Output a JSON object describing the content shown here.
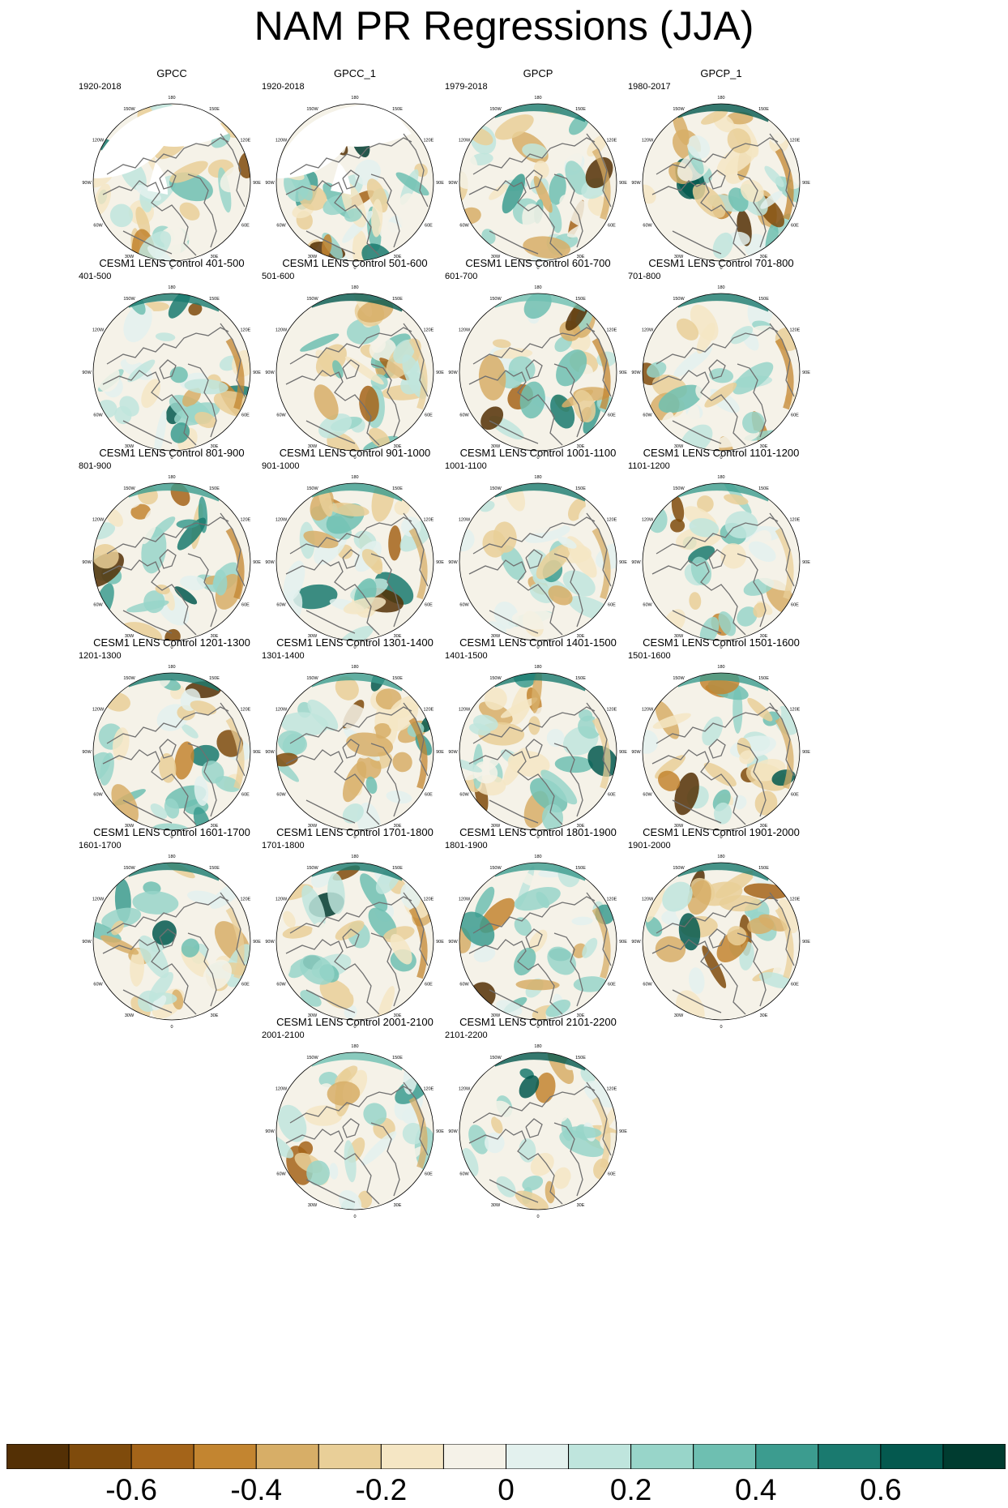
{
  "title": "NAM PR Regressions (JJA)",
  "longitude_labels": [
    "180",
    "150E",
    "120E",
    "90E",
    "60E",
    "30E",
    "0",
    "30W",
    "60W",
    "90W",
    "120W",
    "150W"
  ],
  "panels": [
    {
      "title": "GPCC",
      "period": "1920-2018",
      "kind": "obs_gpcc",
      "seed": 3
    },
    {
      "title": "GPCC_1",
      "period": "1920-2018",
      "kind": "obs_gpcc",
      "seed": 5
    },
    {
      "title": "GPCP",
      "period": "1979-2018",
      "kind": "obs_gpcp",
      "seed": 7
    },
    {
      "title": "GPCP_1",
      "period": "1980-2017",
      "kind": "obs_gpcp",
      "seed": 9
    },
    {
      "title": "CESM1 LENS Control 401-500",
      "period": "401-500",
      "kind": "model",
      "seed": 11
    },
    {
      "title": "CESM1 LENS Control 501-600",
      "period": "501-600",
      "kind": "model",
      "seed": 13
    },
    {
      "title": "CESM1 LENS Control 601-700",
      "period": "601-700",
      "kind": "model",
      "seed": 17
    },
    {
      "title": "CESM1 LENS Control 701-800",
      "period": "701-800",
      "kind": "model",
      "seed": 19
    },
    {
      "title": "CESM1 LENS Control 801-900",
      "period": "801-900",
      "kind": "model",
      "seed": 23
    },
    {
      "title": "CESM1 LENS Control 901-1000",
      "period": "901-1000",
      "kind": "model",
      "seed": 29
    },
    {
      "title": "CESM1 LENS Control 1001-1100",
      "period": "1001-1100",
      "kind": "model",
      "seed": 31
    },
    {
      "title": "CESM1 LENS Control 1101-1200",
      "period": "1101-1200",
      "kind": "model",
      "seed": 37
    },
    {
      "title": "CESM1 LENS Control 1201-1300",
      "period": "1201-1300",
      "kind": "model",
      "seed": 41
    },
    {
      "title": "CESM1 LENS Control 1301-1400",
      "period": "1301-1400",
      "kind": "model",
      "seed": 43
    },
    {
      "title": "CESM1 LENS Control 1401-1500",
      "period": "1401-1500",
      "kind": "model",
      "seed": 47
    },
    {
      "title": "CESM1 LENS Control 1501-1600",
      "period": "1501-1600",
      "kind": "model",
      "seed": 53
    },
    {
      "title": "CESM1 LENS Control 1601-1700",
      "period": "1601-1700",
      "kind": "model",
      "seed": 59
    },
    {
      "title": "CESM1 LENS Control 1701-1800",
      "period": "1701-1800",
      "kind": "model",
      "seed": 61
    },
    {
      "title": "CESM1 LENS Control 1801-1900",
      "period": "1801-1900",
      "kind": "model",
      "seed": 67
    },
    {
      "title": "CESM1 LENS Control 1901-2000",
      "period": "1901-2000",
      "kind": "model",
      "seed": 71
    },
    {
      "title": "CESM1 LENS Control 2001-2100",
      "period": "2001-2100",
      "kind": "model",
      "seed": 73
    },
    {
      "title": "CESM1 LENS Control 2101-2200",
      "period": "2101-2200",
      "kind": "model",
      "seed": 79
    }
  ],
  "colorbar": {
    "colors": [
      "#543005",
      "#7f4b0c",
      "#a46419",
      "#c38530",
      "#d7ae67",
      "#e9cf98",
      "#f5e6c4",
      "#f5f2e8",
      "#e3f1ee",
      "#bfe5dd",
      "#98d5c9",
      "#6ebfb1",
      "#3c9c8f",
      "#1a7a6f",
      "#04594f",
      "#003c30"
    ],
    "tick_labels": [
      "-0.6",
      "-0.4",
      "-0.2",
      "0",
      "0.2",
      "0.4",
      "0.6"
    ],
    "tick_values": [
      -0.6,
      -0.4,
      -0.2,
      0,
      0.2,
      0.4,
      0.6
    ],
    "range": [
      -0.8,
      0.8
    ]
  },
  "chart_data": {
    "type": "heatmap",
    "title": "NAM PR Regressions (JJA)",
    "projection": "north polar stereographic",
    "panel_count": 22,
    "panel_titles": [
      "GPCC",
      "GPCC_1",
      "GPCP",
      "GPCP_1",
      "CESM1 LENS Control 401-500",
      "CESM1 LENS Control 501-600",
      "CESM1 LENS Control 601-700",
      "CESM1 LENS Control 701-800",
      "CESM1 LENS Control 801-900",
      "CESM1 LENS Control 901-1000",
      "CESM1 LENS Control 1001-1100",
      "CESM1 LENS Control 1101-1200",
      "CESM1 LENS Control 1201-1300",
      "CESM1 LENS Control 1301-1400",
      "CESM1 LENS Control 1401-1500",
      "CESM1 LENS Control 1501-1600",
      "CESM1 LENS Control 1601-1700",
      "CESM1 LENS Control 1701-1800",
      "CESM1 LENS Control 1801-1900",
      "CESM1 LENS Control 1901-2000",
      "CESM1 LENS Control 2001-2100",
      "CESM1 LENS Control 2101-2200"
    ],
    "color_scale": {
      "min": -0.8,
      "max": 0.8,
      "ticks": [
        -0.6,
        -0.4,
        -0.2,
        0,
        0.2,
        0.4,
        0.6
      ],
      "levels": 16,
      "negative_color": "brown",
      "positive_color": "teal"
    }
  }
}
